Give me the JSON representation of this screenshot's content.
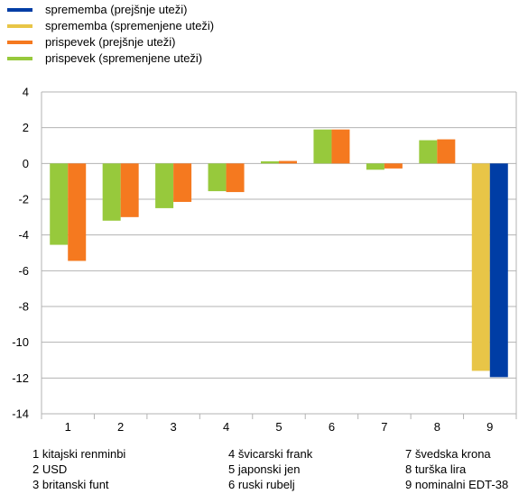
{
  "legend": [
    {
      "label": "sprememba (prejšnje uteži)",
      "color": "#003da5"
    },
    {
      "label": "sprememba (spremenjene uteži)",
      "color": "#e8c547"
    },
    {
      "label": "prispevek (prejšnje uteži)",
      "color": "#f5791f"
    },
    {
      "label": "prispevek (spremenjene uteži)",
      "color": "#97c93c"
    }
  ],
  "chart_data": {
    "type": "bar",
    "categories": [
      "1",
      "2",
      "3",
      "4",
      "5",
      "6",
      "7",
      "8",
      "9"
    ],
    "ylim": [
      -14,
      4
    ],
    "yticks": [
      4,
      2,
      0,
      -2,
      -4,
      -6,
      -8,
      -10,
      -12,
      -14
    ],
    "grid": true,
    "legend_position": "top-left",
    "series": [
      {
        "name": "prispevek (spremenjene uteži)",
        "color": "#97c93c",
        "values": [
          -4.55,
          -3.2,
          -2.5,
          -1.55,
          0.12,
          1.9,
          -0.35,
          1.3,
          null
        ]
      },
      {
        "name": "prispevek (prejšnje uteži)",
        "color": "#f5791f",
        "values": [
          -5.45,
          -3.0,
          -2.15,
          -1.6,
          0.14,
          1.9,
          -0.28,
          1.35,
          null
        ]
      },
      {
        "name": "sprememba (spremenjene uteži)",
        "color": "#e8c547",
        "values": [
          null,
          null,
          null,
          null,
          null,
          null,
          null,
          null,
          -11.6
        ]
      },
      {
        "name": "sprememba (prejšnje uteži)",
        "color": "#003da5",
        "values": [
          null,
          null,
          null,
          null,
          null,
          null,
          null,
          null,
          -11.95
        ]
      }
    ]
  },
  "notes": [
    [
      "1 kitajski renminbi",
      "2 USD",
      "3 britanski funt"
    ],
    [
      "4 švicarski frank",
      "5 japonski jen",
      "6 ruski rubelj"
    ],
    [
      "7 švedska krona",
      "8 turška lira",
      "9 nominalni EDT-38"
    ]
  ]
}
